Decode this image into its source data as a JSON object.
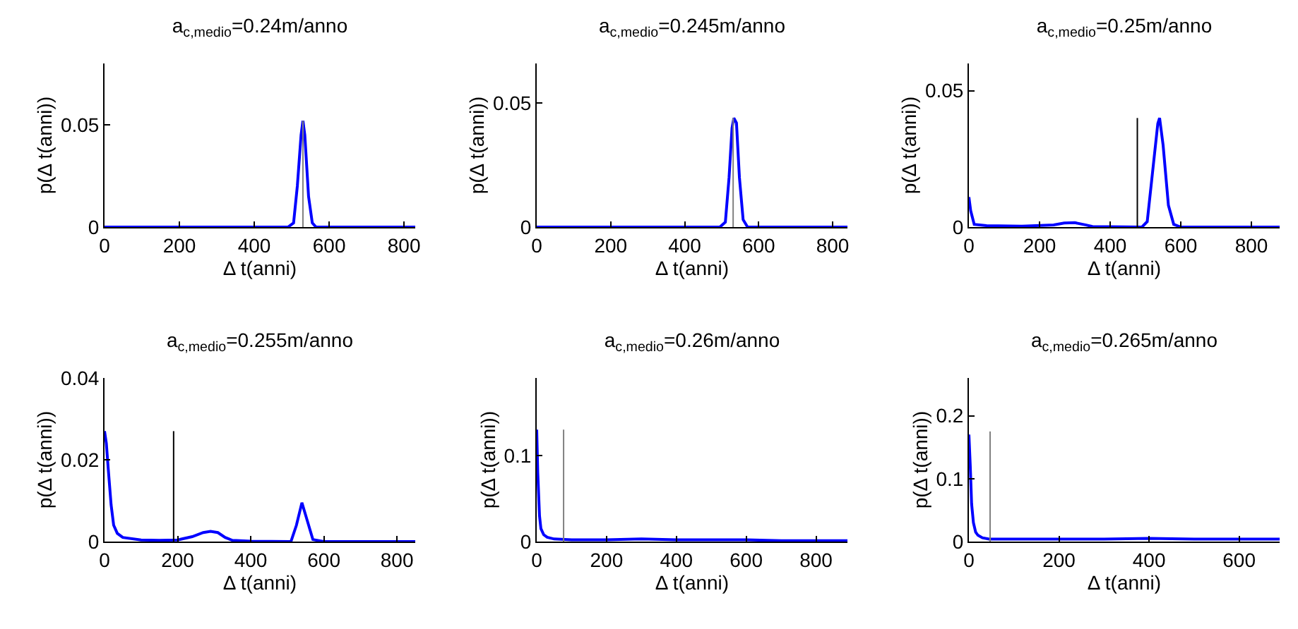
{
  "chart_data": [
    {
      "type": "line",
      "title": "a$_{c,medio}$=0.24m/anno",
      "xlabel": "Δ t(anni)",
      "ylabel": "p(Δ t(anni))",
      "xlim": [
        0,
        830
      ],
      "ylim": [
        0,
        0.08
      ],
      "xticks": [
        0,
        200,
        400,
        600,
        800
      ],
      "yticks": [
        0,
        0.05
      ],
      "grid": false,
      "series": [
        {
          "color": "#0000ff",
          "x": [
            0,
            490,
            505,
            515,
            525,
            530,
            535,
            545,
            555,
            565,
            830
          ],
          "values": [
            0,
            0,
            0.002,
            0.02,
            0.045,
            0.052,
            0.045,
            0.015,
            0.002,
            0,
            0
          ]
        },
        {
          "color": "#808080",
          "x": [
            530,
            530
          ],
          "values": [
            0,
            0.052
          ]
        }
      ]
    },
    {
      "type": "line",
      "title": "a$_{c,medio}$=0.245m/anno",
      "xlabel": "Δ t(anni)",
      "ylabel": "p(Δ t(anni))",
      "xlim": [
        0,
        840
      ],
      "ylim": [
        0,
        0.066
      ],
      "xticks": [
        0,
        200,
        400,
        600,
        800
      ],
      "yticks": [
        0,
        0.05
      ],
      "grid": false,
      "series": [
        {
          "color": "#0000ff",
          "x": [
            0,
            495,
            510,
            520,
            528,
            533,
            540,
            548,
            558,
            570,
            840
          ],
          "values": [
            0,
            0,
            0.002,
            0.02,
            0.04,
            0.044,
            0.042,
            0.02,
            0.003,
            0,
            0
          ]
        },
        {
          "color": "#808080",
          "x": [
            531,
            531
          ],
          "values": [
            0,
            0.044
          ]
        }
      ]
    },
    {
      "type": "line",
      "title": "a$_{c,medio}$=0.25m/anno",
      "xlabel": "Δ t(anni)",
      "ylabel": "p(Δ t(anni))",
      "xlim": [
        0,
        880
      ],
      "ylim": [
        0,
        0.06
      ],
      "xticks": [
        0,
        200,
        400,
        600,
        800
      ],
      "yticks": [
        0,
        0.05
      ],
      "grid": false,
      "series": [
        {
          "color": "#0000ff",
          "x": [
            0,
            5,
            15,
            50,
            150,
            240,
            270,
            300,
            330,
            350,
            490,
            505,
            520,
            535,
            540,
            550,
            565,
            580,
            600,
            880
          ],
          "values": [
            0.011,
            0.006,
            0.001,
            0.0005,
            0.0003,
            0.0008,
            0.0015,
            0.0016,
            0.0008,
            0.0002,
            0,
            0.002,
            0.02,
            0.038,
            0.04,
            0.03,
            0.008,
            0.001,
            0,
            0
          ]
        },
        {
          "color": "#000000",
          "x": [
            477,
            477
          ],
          "values": [
            0,
            0.04
          ]
        }
      ]
    },
    {
      "type": "line",
      "title": "a$_{c,medio}$=0.255m/anno",
      "xlabel": "Δ t(anni)",
      "ylabel": "p(Δ t(anni))",
      "xlim": [
        0,
        850
      ],
      "ylim": [
        0,
        0.04
      ],
      "xticks": [
        0,
        200,
        400,
        600,
        800
      ],
      "yticks": [
        0,
        0.02,
        0.04
      ],
      "grid": false,
      "series": [
        {
          "color": "#0000ff",
          "x": [
            0,
            5,
            10,
            18,
            25,
            35,
            50,
            100,
            150,
            200,
            240,
            270,
            290,
            310,
            330,
            350,
            400,
            510,
            525,
            540,
            555,
            570,
            600,
            850
          ],
          "values": [
            0.027,
            0.024,
            0.018,
            0.009,
            0.004,
            0.002,
            0.001,
            0.0004,
            0.0003,
            0.0004,
            0.0012,
            0.0022,
            0.0025,
            0.0022,
            0.001,
            0.0003,
            0.0001,
            0,
            0.004,
            0.0095,
            0.005,
            0.0005,
            0,
            0
          ]
        },
        {
          "color": "#000000",
          "x": [
            189,
            189
          ],
          "values": [
            0,
            0.027
          ]
        }
      ]
    },
    {
      "type": "line",
      "title": "a$_{c,medio}$=0.26m/anno",
      "xlabel": "Δ t(anni)",
      "ylabel": "p(Δ t(anni))",
      "xlim": [
        0,
        890
      ],
      "ylim": [
        0,
        0.19
      ],
      "xticks": [
        0,
        200,
        400,
        600,
        800
      ],
      "yticks": [
        0,
        0.1
      ],
      "grid": false,
      "series": [
        {
          "color": "#0000ff",
          "x": [
            0,
            3,
            8,
            12,
            20,
            30,
            50,
            100,
            200,
            300,
            400,
            500,
            600,
            700,
            890
          ],
          "values": [
            0.13,
            0.08,
            0.03,
            0.015,
            0.008,
            0.005,
            0.003,
            0.002,
            0.002,
            0.003,
            0.002,
            0.002,
            0.002,
            0.001,
            0.001
          ]
        },
        {
          "color": "#808080",
          "x": [
            77,
            77
          ],
          "values": [
            0,
            0.13
          ]
        }
      ]
    },
    {
      "type": "line",
      "title": "a$_{c,medio}$=0.265m/anno",
      "xlabel": "Δ t(anni)",
      "ylabel": "p(Δ t(anni))",
      "xlim": [
        0,
        690
      ],
      "ylim": [
        0,
        0.26
      ],
      "xticks": [
        0,
        200,
        400,
        600
      ],
      "yticks": [
        0,
        0.1,
        0.2
      ],
      "grid": false,
      "series": [
        {
          "color": "#0000ff",
          "x": [
            0,
            3,
            6,
            10,
            15,
            20,
            30,
            45,
            100,
            200,
            300,
            400,
            500,
            690
          ],
          "values": [
            0.17,
            0.12,
            0.06,
            0.03,
            0.015,
            0.01,
            0.006,
            0.004,
            0.004,
            0.004,
            0.004,
            0.005,
            0.004,
            0.004
          ]
        },
        {
          "color": "#808080",
          "x": [
            47,
            47
          ],
          "values": [
            0,
            0.175
          ]
        }
      ]
    }
  ]
}
